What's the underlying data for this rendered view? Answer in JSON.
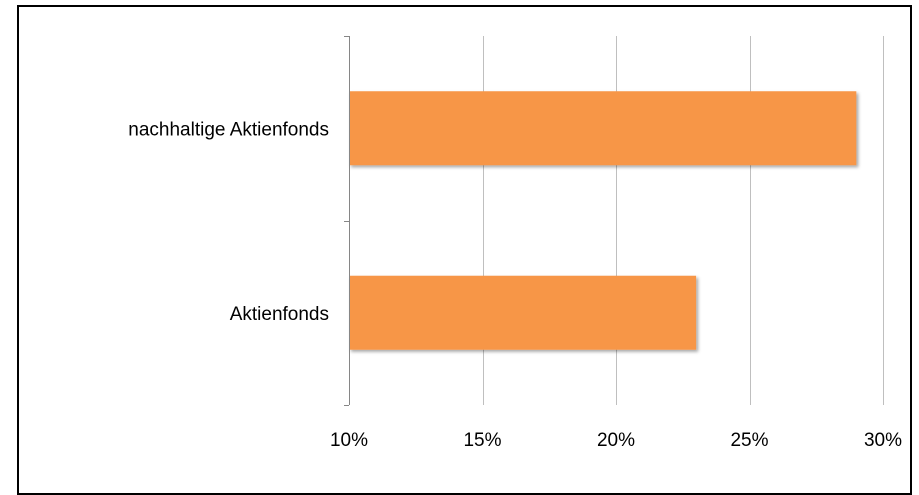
{
  "chart_data": {
    "type": "bar",
    "orientation": "horizontal",
    "categories": [
      "nachhaltige Aktienfonds",
      "Aktienfonds"
    ],
    "values": [
      29,
      23
    ],
    "unit": "%",
    "xlim": [
      10,
      30
    ],
    "xticks": [
      10,
      15,
      20,
      25,
      30
    ],
    "xtick_labels": [
      "10%",
      "15%",
      "20%",
      "25%",
      "30%"
    ],
    "grid": true,
    "bar_color": "#F79646",
    "gridline_color": "#BFBFBF",
    "axis_color": "#868686",
    "title": "",
    "xlabel": "",
    "ylabel": ""
  }
}
